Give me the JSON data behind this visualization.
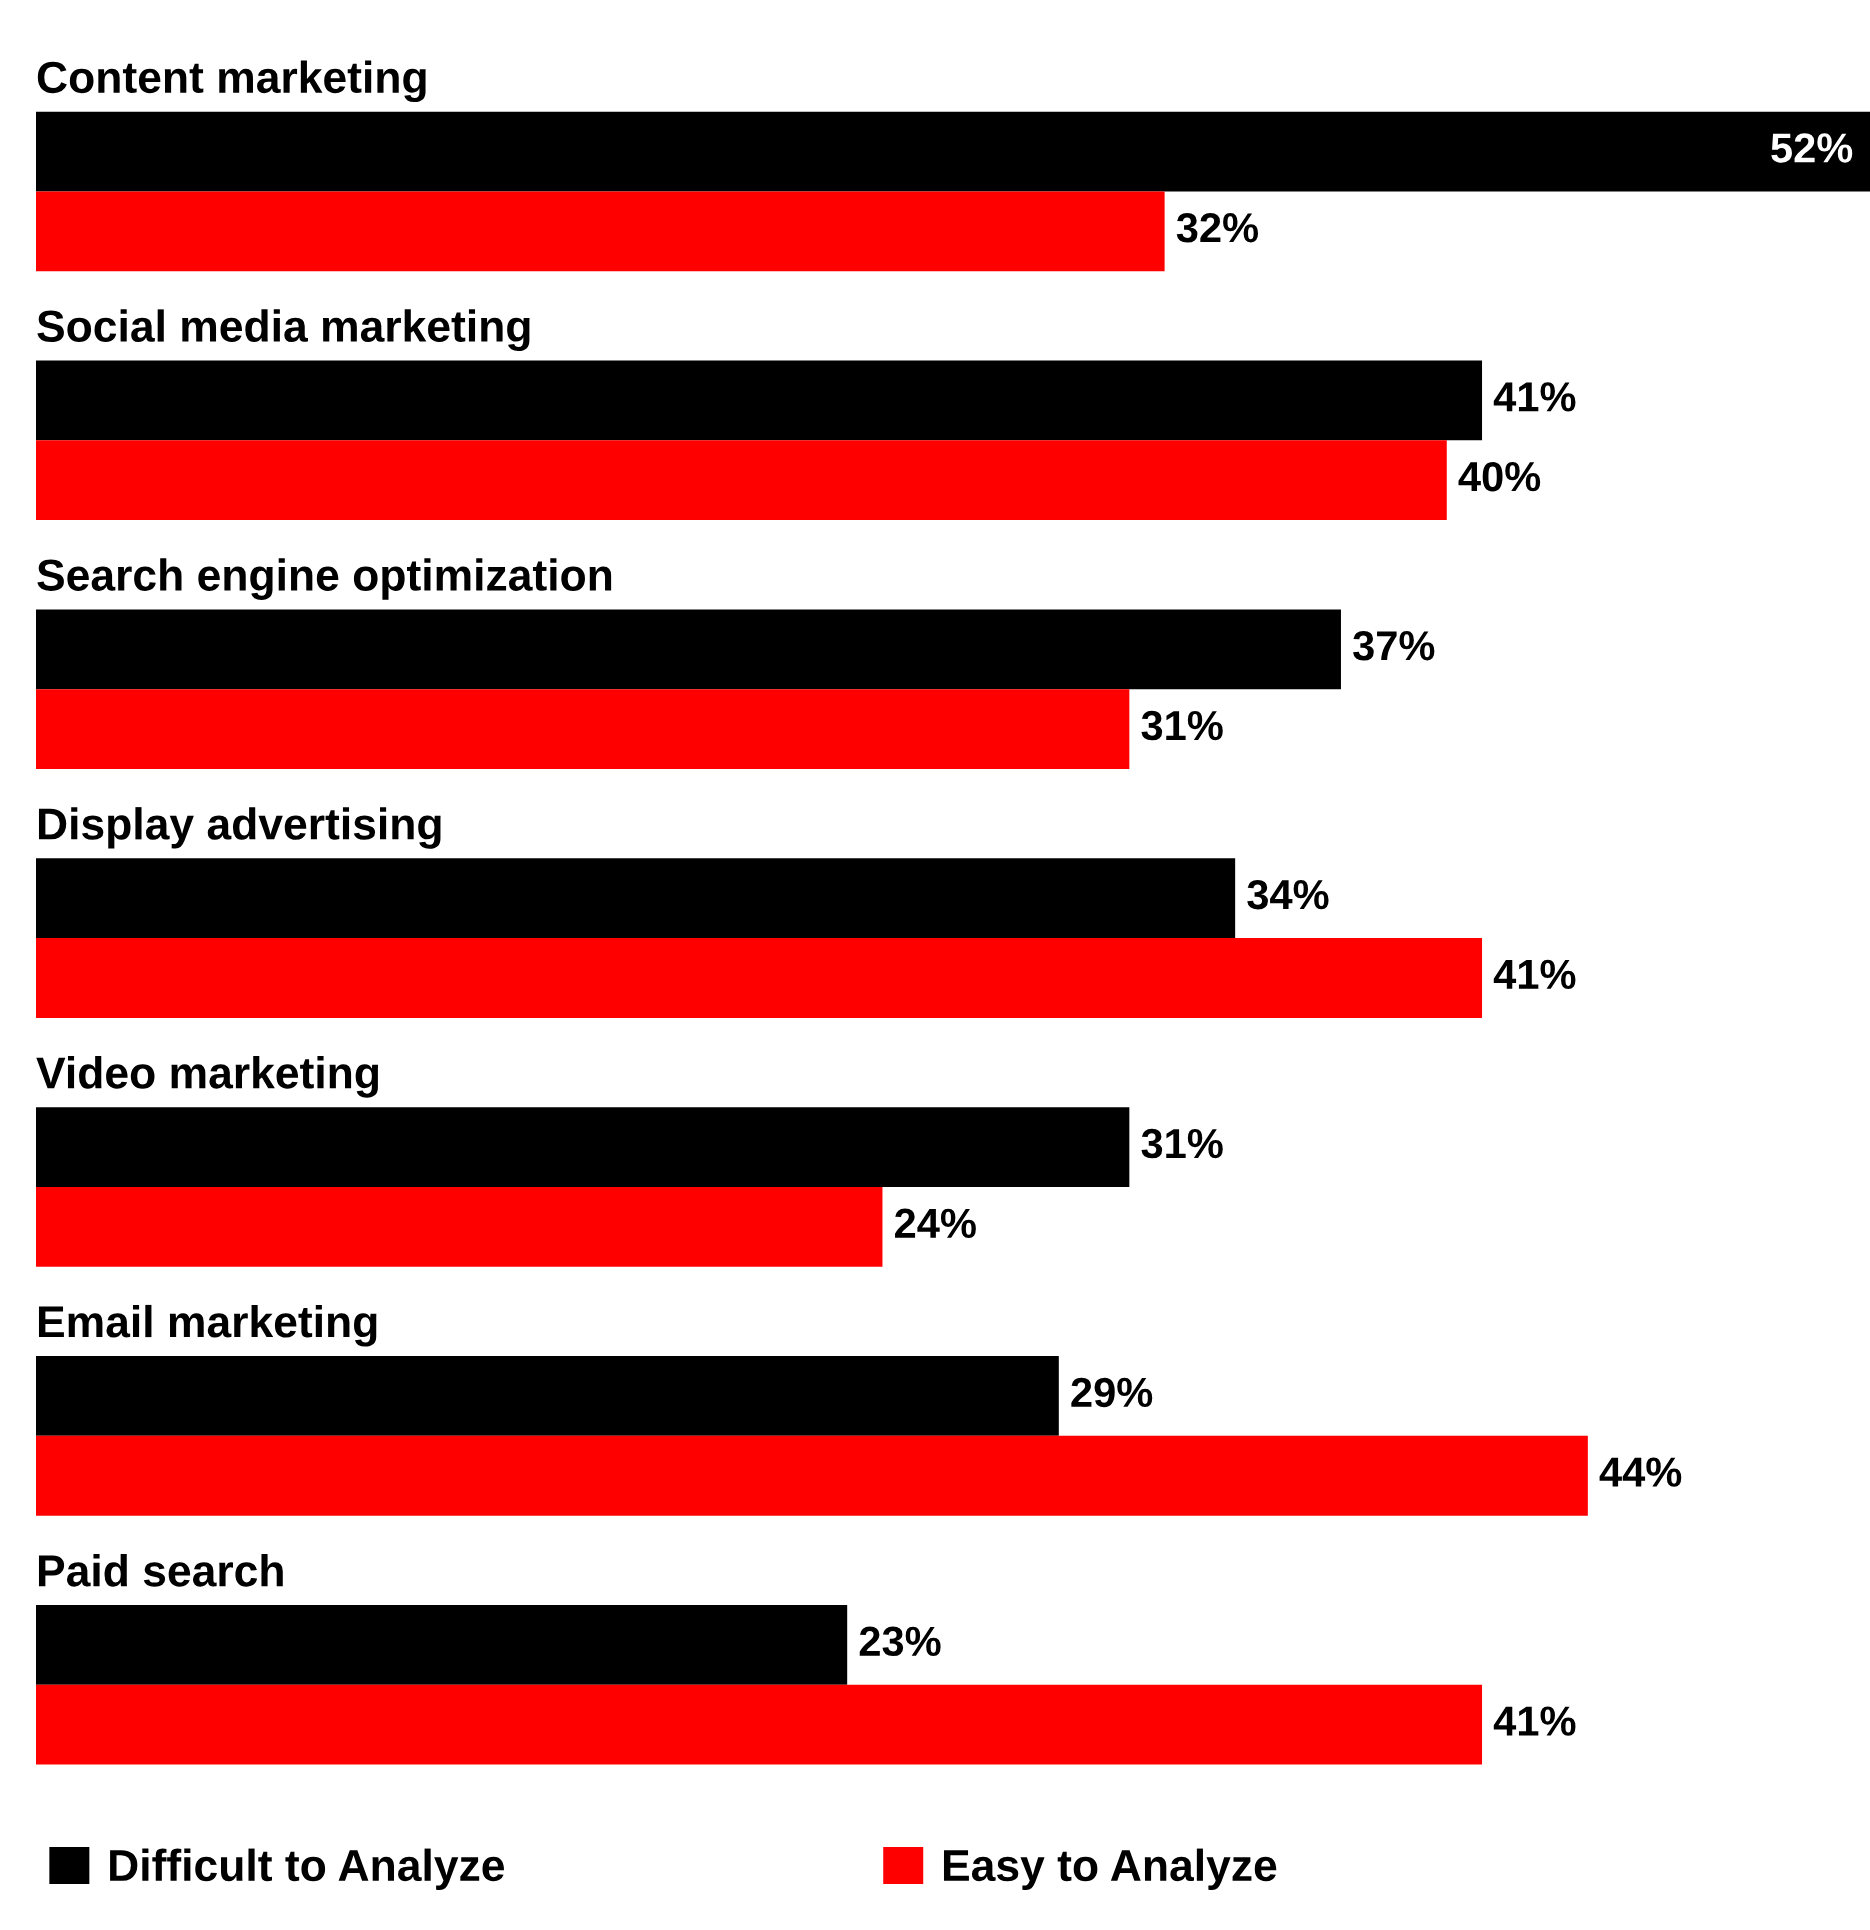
{
  "chart_data": {
    "type": "bar",
    "orientation": "horizontal",
    "legend": "bottom",
    "categories": [
      "Content marketing",
      "Social media marketing",
      "Search engine optimization",
      "Display advertising",
      "Video marketing",
      "Email marketing",
      "Paid search"
    ],
    "series": [
      {
        "name": "Difficult to Analyze",
        "color": "#000000",
        "values": [
          52,
          41,
          37,
          34,
          31,
          29,
          23
        ],
        "value_labels": [
          "52%",
          "41%",
          "37%",
          "34%",
          "31%",
          "29%",
          "23%"
        ]
      },
      {
        "name": "Easy to Analyze",
        "color": "#ff0000",
        "values": [
          32,
          40,
          31,
          41,
          24,
          44,
          41
        ],
        "value_labels": [
          "32%",
          "40%",
          "31%",
          "41%",
          "24%",
          "44%",
          "41%"
        ]
      }
    ]
  }
}
